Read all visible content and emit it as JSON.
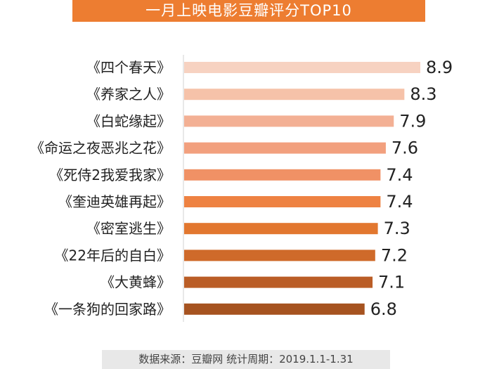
{
  "title": "一月上映电影豆瓣评分TOP10",
  "footer": "数据来源：豆瓣网    统计周期：2019.1.1-1.31",
  "chart_data": {
    "type": "bar",
    "orientation": "horizontal",
    "title": "一月上映电影豆瓣评分TOP10",
    "categories": [
      "《四个春天》",
      "《养家之人》",
      "《白蛇缘起》",
      "《命运之夜恶兆之花》",
      "《死侍2我爱我家》",
      "《奎迪英雄再起》",
      "《密室逃生》",
      "《22年后的自白》",
      "《大黄蜂》",
      "《一条狗的回家路》"
    ],
    "values": [
      8.9,
      8.3,
      7.9,
      7.6,
      7.4,
      7.4,
      7.3,
      7.2,
      7.1,
      6.8
    ],
    "value_labels": [
      "8.9",
      "8.3",
      "7.9",
      "7.6",
      "7.4",
      "7.4",
      "7.3",
      "7.2",
      "7.1",
      "6.8"
    ],
    "colors": [
      "#f7d2c1",
      "#f6c2a9",
      "#f3b094",
      "#f2a07e",
      "#f09165",
      "#ee8242",
      "#e2772f",
      "#cf6a2a",
      "#ba5d26",
      "#a65320"
    ],
    "xlim": [
      0,
      8.9
    ],
    "grid": false,
    "legend": "none"
  }
}
